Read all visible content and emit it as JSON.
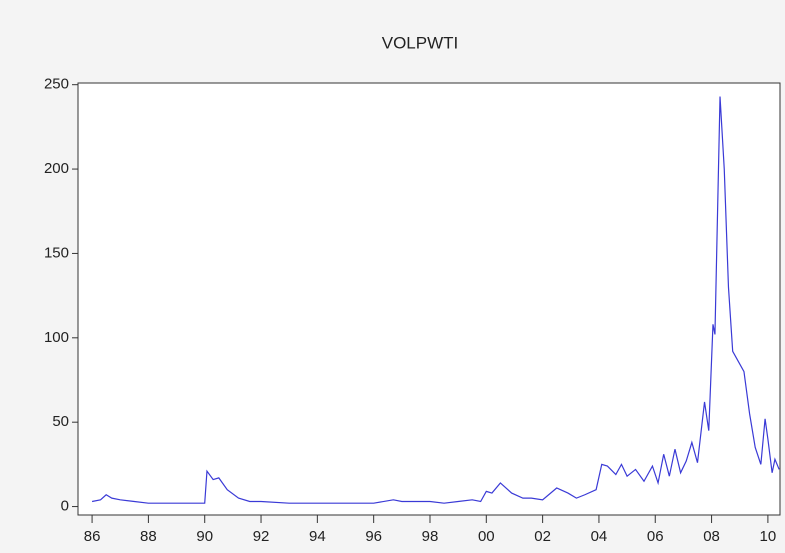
{
  "chart_data": {
    "type": "line",
    "title": "VOLPWTI",
    "x": [
      1986.0,
      1986.3,
      1986.5,
      1986.7,
      1987.0,
      1987.5,
      1988.0,
      1988.5,
      1989.0,
      1989.5,
      1990.0,
      1990.08,
      1990.3,
      1990.5,
      1990.8,
      1991.2,
      1991.6,
      1992.0,
      1993.0,
      1994.0,
      1995.0,
      1996.0,
      1996.7,
      1997.0,
      1998.0,
      1998.5,
      1999.0,
      1999.5,
      1999.8,
      2000.0,
      2000.2,
      2000.5,
      2000.9,
      2001.3,
      2001.6,
      2002.0,
      2002.5,
      2002.9,
      2003.2,
      2003.5,
      2003.9,
      2004.1,
      2004.3,
      2004.6,
      2004.8,
      2005.0,
      2005.3,
      2005.6,
      2005.9,
      2006.1,
      2006.3,
      2006.5,
      2006.7,
      2006.9,
      2007.1,
      2007.3,
      2007.5,
      2007.75,
      2007.9,
      2008.05,
      2008.12,
      2008.3,
      2008.45,
      2008.6,
      2008.75,
      2008.95,
      2009.15,
      2009.35,
      2009.55,
      2009.75,
      2009.9,
      2010.0,
      2010.15,
      2010.25,
      2010.4
    ],
    "series": [
      {
        "name": "VOLPWTI",
        "color": "#3a3ad6",
        "values": [
          3,
          4,
          7,
          5,
          4,
          3,
          2,
          2,
          2,
          2,
          2,
          21,
          16,
          17,
          10,
          5,
          3,
          3,
          2,
          2,
          2,
          2,
          4,
          3,
          3,
          2,
          3,
          4,
          3,
          9,
          8,
          14,
          8,
          5,
          5,
          4,
          11,
          8,
          5,
          7,
          10,
          25,
          24,
          19,
          25,
          18,
          22,
          15,
          24,
          14,
          31,
          18,
          34,
          20,
          27,
          38,
          26,
          62,
          45,
          108,
          102,
          243,
          200,
          130,
          92,
          86,
          80,
          55,
          35,
          25,
          52,
          40,
          20,
          28,
          22
        ]
      }
    ],
    "xlim": [
      1985.5,
      2010.43
    ],
    "xticks": [
      {
        "value": 1986,
        "label": "86"
      },
      {
        "value": 1988,
        "label": "88"
      },
      {
        "value": 1990,
        "label": "90"
      },
      {
        "value": 1992,
        "label": "92"
      },
      {
        "value": 1994,
        "label": "94"
      },
      {
        "value": 1996,
        "label": "96"
      },
      {
        "value": 1998,
        "label": "98"
      },
      {
        "value": 2000,
        "label": "00"
      },
      {
        "value": 2002,
        "label": "02"
      },
      {
        "value": 2004,
        "label": "04"
      },
      {
        "value": 2006,
        "label": "06"
      },
      {
        "value": 2008,
        "label": "08"
      },
      {
        "value": 2010,
        "label": "10"
      }
    ],
    "ylim": [
      -5,
      251
    ],
    "yticks": [
      0,
      50,
      100,
      150,
      200,
      250
    ],
    "grid": false
  }
}
